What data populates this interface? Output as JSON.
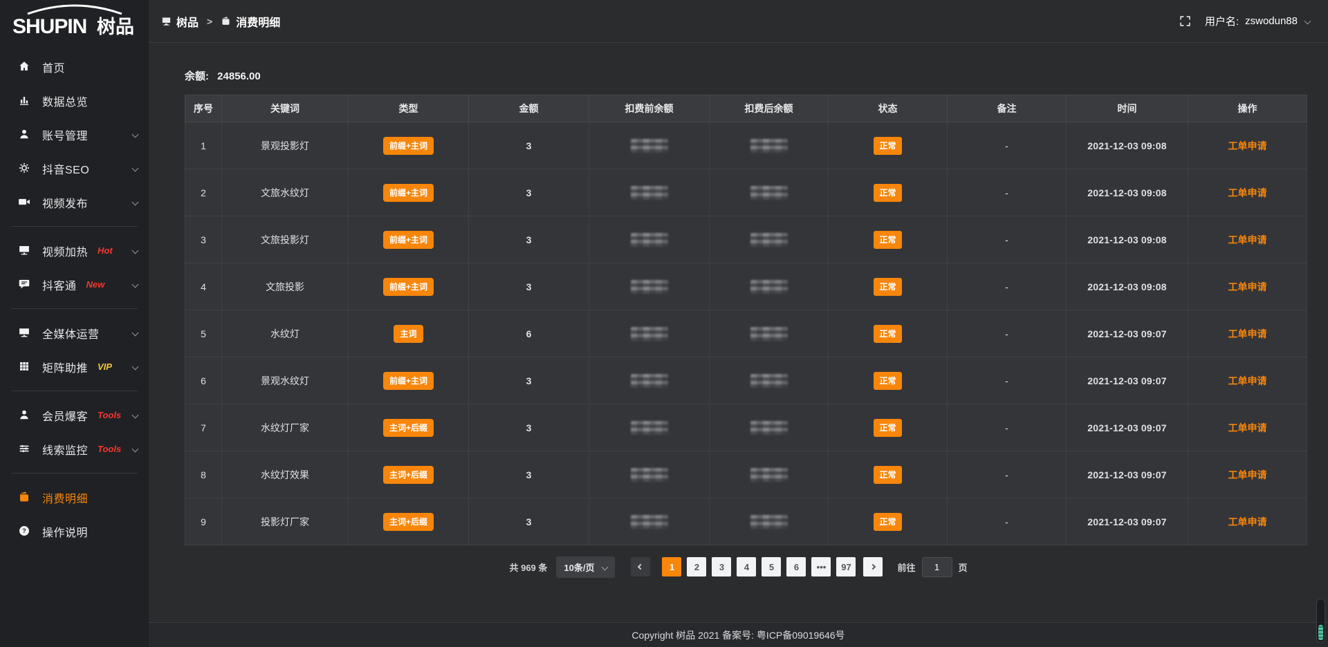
{
  "topbar": {
    "breadcrumb": [
      {
        "label": "树品"
      },
      {
        "label": "消费明细"
      }
    ],
    "separator": ">",
    "user_label": "用户名:",
    "username": "zswodun88"
  },
  "sidebar": {
    "logo_en": "SHUPIN",
    "logo_cn": "树品",
    "items": [
      {
        "label": "首页",
        "icon": "home-icon"
      },
      {
        "label": "数据总览",
        "icon": "bar-chart-icon"
      },
      {
        "label": "账号管理",
        "icon": "user-icon",
        "chevron": true
      },
      {
        "label": "抖音SEO",
        "icon": "gear-icon",
        "chevron": true
      },
      {
        "label": "视频发布",
        "icon": "video-camera-icon",
        "chevron": true
      },
      {
        "divider": true
      },
      {
        "label": "视频加热",
        "icon": "screen-icon",
        "tag": "Hot",
        "tag_color": "#f5372e",
        "chevron": true
      },
      {
        "label": "抖客通",
        "icon": "chat-icon",
        "tag": "New",
        "tag_color": "#f5372e",
        "chevron": true
      },
      {
        "divider": true
      },
      {
        "label": "全媒体运营",
        "icon": "monitor-icon",
        "chevron": true
      },
      {
        "label": "矩阵助推",
        "icon": "grid-icon",
        "tag": "VIP",
        "tag_color": "#f3c73c",
        "chevron": true
      },
      {
        "divider": true
      },
      {
        "label": "会员爆客",
        "icon": "member-icon",
        "tag": "Tools",
        "tag_color": "#f5372e",
        "chevron": true
      },
      {
        "label": "线索监控",
        "icon": "sliders-icon",
        "tag": "Tools",
        "tag_color": "#f5372e",
        "chevron": true
      },
      {
        "divider": true
      },
      {
        "label": "消费明细",
        "icon": "wallet-icon",
        "active": true
      },
      {
        "label": "操作说明",
        "icon": "question-icon"
      }
    ]
  },
  "main": {
    "balance_label": "余额:",
    "balance_value": "24856.00",
    "table": {
      "columns": [
        "序号",
        "关键词",
        "类型",
        "金额",
        "扣费前余额",
        "扣费后余额",
        "状态",
        "备注",
        "时间",
        "操作"
      ],
      "rows": [
        {
          "no": "1",
          "keyword": "景观投影灯",
          "type": "前缀+主词",
          "amount": "3",
          "status": "正常",
          "remark": "-",
          "time": "2021-12-03 09:08",
          "action": "工单申请"
        },
        {
          "no": "2",
          "keyword": "文旅水纹灯",
          "type": "前缀+主词",
          "amount": "3",
          "status": "正常",
          "remark": "-",
          "time": "2021-12-03 09:08",
          "action": "工单申请"
        },
        {
          "no": "3",
          "keyword": "文旅投影灯",
          "type": "前缀+主词",
          "amount": "3",
          "status": "正常",
          "remark": "-",
          "time": "2021-12-03 09:08",
          "action": "工单申请"
        },
        {
          "no": "4",
          "keyword": "文旅投影",
          "type": "前缀+主词",
          "amount": "3",
          "status": "正常",
          "remark": "-",
          "time": "2021-12-03 09:08",
          "action": "工单申请"
        },
        {
          "no": "5",
          "keyword": "水纹灯",
          "type": "主词",
          "amount": "6",
          "status": "正常",
          "remark": "-",
          "time": "2021-12-03 09:07",
          "action": "工单申请"
        },
        {
          "no": "6",
          "keyword": "景观水纹灯",
          "type": "前缀+主词",
          "amount": "3",
          "status": "正常",
          "remark": "-",
          "time": "2021-12-03 09:07",
          "action": "工单申请"
        },
        {
          "no": "7",
          "keyword": "水纹灯厂家",
          "type": "主词+后缀",
          "amount": "3",
          "status": "正常",
          "remark": "-",
          "time": "2021-12-03 09:07",
          "action": "工单申请"
        },
        {
          "no": "8",
          "keyword": "水纹灯效果",
          "type": "主词+后缀",
          "amount": "3",
          "status": "正常",
          "remark": "-",
          "time": "2021-12-03 09:07",
          "action": "工单申请"
        },
        {
          "no": "9",
          "keyword": "投影灯厂家",
          "type": "主词+后缀",
          "amount": "3",
          "status": "正常",
          "remark": "-",
          "time": "2021-12-03 09:07",
          "action": "工单申请"
        }
      ]
    },
    "pagination": {
      "total_text": "共 969 条",
      "page_size": "10条/页",
      "pages": [
        "1",
        "2",
        "3",
        "4",
        "5",
        "6",
        "•••",
        "97"
      ],
      "active_page": "1",
      "goto_label": "前往",
      "goto_value": "1",
      "goto_unit": "页"
    }
  },
  "footer": {
    "copyright": "Copyright 树品 2021 备案号: 粤ICP备09019646号"
  },
  "colors": {
    "accent": "#f7860b",
    "danger": "#f5372e",
    "vip": "#f3c73c"
  }
}
